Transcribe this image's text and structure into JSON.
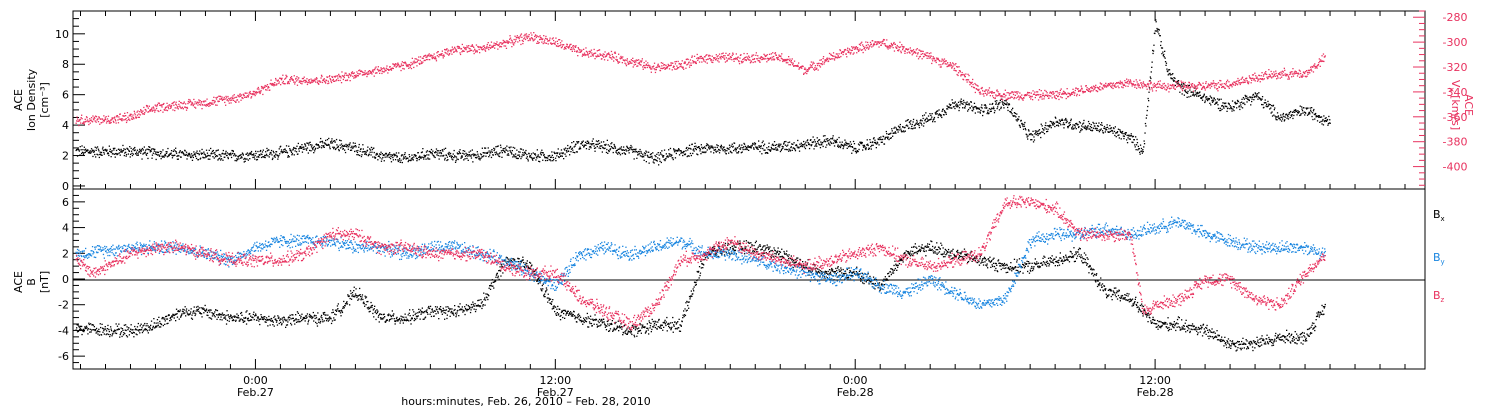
{
  "figure": {
    "x_axis_title": "hours:minutes, Feb. 26, 2010 – Feb. 28, 2010",
    "x_ticks": [
      {
        "time": "0:00",
        "date": "Feb.27",
        "hour": 0
      },
      {
        "time": "12:00",
        "date": "Feb.27",
        "hour": 12
      },
      {
        "time": "0:00",
        "date": "Feb.28",
        "hour": 24
      },
      {
        "time": "12:00",
        "date": "Feb.28",
        "hour": 36
      }
    ],
    "x_range_hours": [
      -7.3,
      46.8
    ],
    "colors": {
      "black": "#000000",
      "pink": "#e8325f",
      "blue": "#1a86e0"
    }
  },
  "chart_data": [
    {
      "type": "scatter",
      "panel": "top",
      "ylabel_left": [
        "ACE",
        "Ion Density",
        "[cm⁻³]"
      ],
      "ylabel_right": [
        "ACE",
        "V",
        "x",
        "[km/s]"
      ],
      "ylim_left": [
        -0.2,
        11.5
      ],
      "ylim_right": [
        -418,
        -275
      ],
      "left_ticks": [
        0,
        2,
        4,
        6,
        8,
        10
      ],
      "right_ticks": [
        -400,
        -380,
        -360,
        -340,
        -320,
        -300,
        -280
      ],
      "series": [
        {
          "axis": "left",
          "color": "#000000",
          "points": [
            [
              -7.2,
              2.3
            ],
            [
              -5,
              2.3
            ],
            [
              -3,
              2.1
            ],
            [
              -1,
              2.0
            ],
            [
              0,
              2.1
            ],
            [
              1,
              2.2
            ],
            [
              2,
              2.6
            ],
            [
              3,
              2.8
            ],
            [
              4,
              2.5
            ],
            [
              5,
              2.0
            ],
            [
              6,
              1.8
            ],
            [
              7,
              2.2
            ],
            [
              8,
              2.0
            ],
            [
              9,
              2.1
            ],
            [
              10,
              2.4
            ],
            [
              11,
              2.0
            ],
            [
              12,
              2.0
            ],
            [
              13,
              2.8
            ],
            [
              14,
              2.6
            ],
            [
              15,
              2.3
            ],
            [
              16,
              1.8
            ],
            [
              17,
              2.3
            ],
            [
              18,
              2.5
            ],
            [
              19,
              2.5
            ],
            [
              20,
              2.6
            ],
            [
              21,
              2.6
            ],
            [
              22,
              2.8
            ],
            [
              23,
              3.0
            ],
            [
              24,
              2.5
            ],
            [
              25,
              3.0
            ],
            [
              26,
              4.0
            ],
            [
              27,
              4.5
            ],
            [
              28,
              5.5
            ],
            [
              29,
              5.0
            ],
            [
              30,
              5.5
            ],
            [
              31,
              3.2
            ],
            [
              32,
              4.3
            ],
            [
              33,
              4.0
            ],
            [
              34,
              3.8
            ],
            [
              35,
              3.2
            ],
            [
              35.5,
              2.3
            ],
            [
              36,
              10.8
            ],
            [
              36.5,
              7.5
            ],
            [
              37,
              6.5
            ],
            [
              38,
              5.8
            ],
            [
              39,
              5.2
            ],
            [
              40,
              6.0
            ],
            [
              41,
              4.5
            ],
            [
              42,
              5.0
            ],
            [
              43,
              4.3
            ]
          ]
        },
        {
          "axis": "right",
          "color": "#e8325f",
          "points": [
            [
              -7.2,
              -362
            ],
            [
              -6,
              -362
            ],
            [
              -5,
              -360
            ],
            [
              -4,
              -352
            ],
            [
              -3,
              -350
            ],
            [
              -2,
              -348
            ],
            [
              -1,
              -345
            ],
            [
              0,
              -340
            ],
            [
              1,
              -330
            ],
            [
              2,
              -330
            ],
            [
              3,
              -330
            ],
            [
              4,
              -325
            ],
            [
              5,
              -322
            ],
            [
              6,
              -318
            ],
            [
              7,
              -312
            ],
            [
              8,
              -305
            ],
            [
              9,
              -305
            ],
            [
              10,
              -300
            ],
            [
              11,
              -295
            ],
            [
              12,
              -300
            ],
            [
              13,
              -308
            ],
            [
              14,
              -310
            ],
            [
              15,
              -315
            ],
            [
              16,
              -320
            ],
            [
              17,
              -318
            ],
            [
              18,
              -312
            ],
            [
              19,
              -312
            ],
            [
              20,
              -312
            ],
            [
              21,
              -312
            ],
            [
              22,
              -322
            ],
            [
              23,
              -312
            ],
            [
              24,
              -305
            ],
            [
              25,
              -300
            ],
            [
              26,
              -305
            ],
            [
              27,
              -312
            ],
            [
              28,
              -320
            ],
            [
              29,
              -340
            ],
            [
              30,
              -342
            ],
            [
              31,
              -342
            ],
            [
              32,
              -342
            ],
            [
              33,
              -338
            ],
            [
              34,
              -335
            ],
            [
              35,
              -332
            ],
            [
              36,
              -335
            ],
            [
              37,
              -335
            ],
            [
              38,
              -335
            ],
            [
              39,
              -333
            ],
            [
              40,
              -328
            ],
            [
              41,
              -325
            ],
            [
              42,
              -325
            ],
            [
              42.8,
              -312
            ]
          ]
        }
      ]
    },
    {
      "type": "scatter",
      "panel": "bottom",
      "ylabel": [
        "ACE",
        "B",
        "[nT]"
      ],
      "ylim": [
        -7,
        7
      ],
      "ticks": [
        -6,
        -4,
        -2,
        0,
        2,
        4,
        6
      ],
      "legend": [
        {
          "base": "B",
          "sub": "x",
          "color": "#000000"
        },
        {
          "base": "B",
          "sub": "y",
          "color": "#1a86e0"
        },
        {
          "base": "B",
          "sub": "z",
          "color": "#e8325f"
        }
      ],
      "series": [
        {
          "name": "Bx",
          "color": "#000000",
          "points": [
            [
              -7.2,
              -3.8
            ],
            [
              -5,
              -4.0
            ],
            [
              -4,
              -3.5
            ],
            [
              -3,
              -2.5
            ],
            [
              -2,
              -2.5
            ],
            [
              -1,
              -3.0
            ],
            [
              0,
              -3.0
            ],
            [
              1,
              -3.2
            ],
            [
              2,
              -3.0
            ],
            [
              3,
              -3.0
            ],
            [
              4,
              -1.0
            ],
            [
              5,
              -3.0
            ],
            [
              6,
              -3.0
            ],
            [
              7,
              -2.5
            ],
            [
              8,
              -2.5
            ],
            [
              9,
              -2.0
            ],
            [
              10,
              1.5
            ],
            [
              11,
              1.0
            ],
            [
              12,
              -2.5
            ],
            [
              13,
              -3.0
            ],
            [
              14,
              -3.5
            ],
            [
              15,
              -4.0
            ],
            [
              16,
              -3.5
            ],
            [
              17,
              -3.5
            ],
            [
              18,
              2.0
            ],
            [
              19,
              2.5
            ],
            [
              20,
              2.5
            ],
            [
              21,
              2.0
            ],
            [
              22,
              1.0
            ],
            [
              23,
              0.5
            ],
            [
              24,
              0.5
            ],
            [
              25,
              -0.5
            ],
            [
              26,
              2.0
            ],
            [
              27,
              2.5
            ],
            [
              28,
              2.0
            ],
            [
              29,
              1.5
            ],
            [
              30,
              1.0
            ],
            [
              31,
              1.0
            ],
            [
              32,
              1.5
            ],
            [
              33,
              2.0
            ],
            [
              34,
              -1.0
            ],
            [
              35,
              -1.5
            ],
            [
              36,
              -3.5
            ],
            [
              37,
              -3.5
            ],
            [
              38,
              -4.0
            ],
            [
              39,
              -5.0
            ],
            [
              40,
              -5.0
            ],
            [
              41,
              -4.5
            ],
            [
              42,
              -4.5
            ],
            [
              42.8,
              -2.0
            ]
          ]
        },
        {
          "name": "By",
          "color": "#1a86e0",
          "points": [
            [
              -7.2,
              2.0
            ],
            [
              -5,
              2.5
            ],
            [
              -4,
              2.5
            ],
            [
              -3,
              2.5
            ],
            [
              -2,
              2.0
            ],
            [
              -1,
              1.5
            ],
            [
              0,
              2.5
            ],
            [
              1,
              3.0
            ],
            [
              2,
              3.0
            ],
            [
              3,
              3.0
            ],
            [
              4,
              2.5
            ],
            [
              5,
              2.5
            ],
            [
              6,
              2.0
            ],
            [
              7,
              2.5
            ],
            [
              8,
              2.5
            ],
            [
              9,
              2.0
            ],
            [
              10,
              1.5
            ],
            [
              11,
              0.5
            ],
            [
              12,
              -0.5
            ],
            [
              13,
              2.0
            ],
            [
              14,
              2.5
            ],
            [
              15,
              2.0
            ],
            [
              16,
              2.5
            ],
            [
              17,
              3.0
            ],
            [
              18,
              2.0
            ],
            [
              19,
              2.0
            ],
            [
              20,
              1.5
            ],
            [
              21,
              1.0
            ],
            [
              22,
              0.5
            ],
            [
              23,
              0.0
            ],
            [
              24,
              0.5
            ],
            [
              25,
              -0.5
            ],
            [
              26,
              -1.0
            ],
            [
              27,
              0.0
            ],
            [
              28,
              -1.0
            ],
            [
              29,
              -2.0
            ],
            [
              30,
              -1.5
            ],
            [
              31,
              3.0
            ],
            [
              32,
              3.5
            ],
            [
              33,
              3.5
            ],
            [
              34,
              4.0
            ],
            [
              35,
              3.5
            ],
            [
              36,
              4.0
            ],
            [
              37,
              4.5
            ],
            [
              38,
              3.5
            ],
            [
              39,
              3.0
            ],
            [
              40,
              2.5
            ],
            [
              41,
              2.5
            ],
            [
              42,
              2.5
            ],
            [
              42.8,
              2.0
            ]
          ]
        },
        {
          "name": "Bz",
          "color": "#e8325f",
          "points": [
            [
              -7.2,
              1.5
            ],
            [
              -6.5,
              0.5
            ],
            [
              -6,
              1.0
            ],
            [
              -5,
              2.0
            ],
            [
              -4,
              2.5
            ],
            [
              -3,
              2.5
            ],
            [
              -2,
              2.0
            ],
            [
              -1,
              1.5
            ],
            [
              0,
              1.5
            ],
            [
              1,
              1.5
            ],
            [
              2,
              2.0
            ],
            [
              3,
              3.5
            ],
            [
              4,
              3.5
            ],
            [
              5,
              2.5
            ],
            [
              6,
              2.5
            ],
            [
              7,
              2.0
            ],
            [
              8,
              2.0
            ],
            [
              9,
              2.0
            ],
            [
              10,
              1.0
            ],
            [
              11,
              0.5
            ],
            [
              12,
              0.5
            ],
            [
              13,
              -1.5
            ],
            [
              14,
              -2.5
            ],
            [
              15,
              -3.5
            ],
            [
              16,
              -2.0
            ],
            [
              17,
              1.5
            ],
            [
              18,
              2.0
            ],
            [
              19,
              3.0
            ],
            [
              20,
              2.0
            ],
            [
              21,
              1.5
            ],
            [
              22,
              1.0
            ],
            [
              23,
              1.5
            ],
            [
              24,
              2.0
            ],
            [
              25,
              2.5
            ],
            [
              26,
              1.5
            ],
            [
              27,
              1.0
            ],
            [
              28,
              1.5
            ],
            [
              29,
              2.0
            ],
            [
              30,
              6.0
            ],
            [
              31,
              6.0
            ],
            [
              32,
              5.5
            ],
            [
              33,
              3.5
            ],
            [
              34,
              3.5
            ],
            [
              35,
              3.5
            ],
            [
              35.5,
              -2.5
            ],
            [
              36,
              -2.0
            ],
            [
              37,
              -1.5
            ],
            [
              38,
              0.0
            ],
            [
              39,
              0.0
            ],
            [
              40,
              -1.5
            ],
            [
              41,
              -2.0
            ],
            [
              42,
              0.5
            ],
            [
              42.8,
              2.0
            ]
          ]
        }
      ]
    }
  ]
}
